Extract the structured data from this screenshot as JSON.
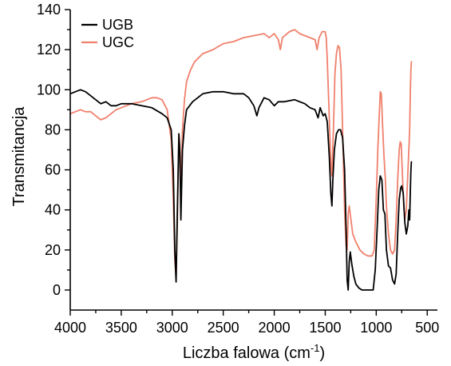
{
  "chart_data": {
    "type": "line",
    "xlabel_main": "Liczba falowa (cm",
    "xlabel_sup": "-1",
    "xlabel_close": ")",
    "ylabel": "Transmitancja",
    "xlim": [
      4000,
      400
    ],
    "ylim": [
      -10,
      140
    ],
    "x_ticks": [
      4000,
      3500,
      3000,
      2500,
      2000,
      1500,
      1000,
      500
    ],
    "x_tick_labels": [
      "4000",
      "3500",
      "3000",
      "2500",
      "2000",
      "1500",
      "1000",
      "500"
    ],
    "y_ticks": [
      0,
      20,
      40,
      60,
      80,
      100,
      120,
      140
    ],
    "y_tick_labels": [
      "0",
      "20",
      "40",
      "60",
      "80",
      "100",
      "120",
      "140"
    ],
    "legend_position": "top-left",
    "series": [
      {
        "name": "UGB",
        "color": "#000000",
        "points": [
          [
            4000,
            98
          ],
          [
            3950,
            99
          ],
          [
            3900,
            100
          ],
          [
            3850,
            99
          ],
          [
            3800,
            97
          ],
          [
            3750,
            95
          ],
          [
            3700,
            93
          ],
          [
            3650,
            94
          ],
          [
            3600,
            92
          ],
          [
            3550,
            92
          ],
          [
            3500,
            93
          ],
          [
            3400,
            93
          ],
          [
            3300,
            92
          ],
          [
            3200,
            91
          ],
          [
            3100,
            88
          ],
          [
            3050,
            86
          ],
          [
            3010,
            80
          ],
          [
            2990,
            60
          ],
          [
            2975,
            20
          ],
          [
            2962,
            4
          ],
          [
            2950,
            40
          ],
          [
            2935,
            78
          ],
          [
            2925,
            68
          ],
          [
            2915,
            35
          ],
          [
            2900,
            70
          ],
          [
            2880,
            82
          ],
          [
            2860,
            90
          ],
          [
            2800,
            94
          ],
          [
            2700,
            98
          ],
          [
            2600,
            99
          ],
          [
            2500,
            99
          ],
          [
            2400,
            98
          ],
          [
            2300,
            98
          ],
          [
            2250,
            96
          ],
          [
            2200,
            92
          ],
          [
            2170,
            87
          ],
          [
            2150,
            91
          ],
          [
            2100,
            96
          ],
          [
            2050,
            95
          ],
          [
            2000,
            92
          ],
          [
            1960,
            94
          ],
          [
            1900,
            94
          ],
          [
            1800,
            95
          ],
          [
            1700,
            93
          ],
          [
            1650,
            91
          ],
          [
            1600,
            90
          ],
          [
            1570,
            86
          ],
          [
            1550,
            91
          ],
          [
            1520,
            87
          ],
          [
            1500,
            88
          ],
          [
            1480,
            84
          ],
          [
            1460,
            66
          ],
          [
            1445,
            48
          ],
          [
            1435,
            42
          ],
          [
            1425,
            55
          ],
          [
            1410,
            70
          ],
          [
            1390,
            78
          ],
          [
            1370,
            80
          ],
          [
            1350,
            80
          ],
          [
            1330,
            76
          ],
          [
            1310,
            60
          ],
          [
            1295,
            30
          ],
          [
            1285,
            5
          ],
          [
            1275,
            0
          ],
          [
            1265,
            14
          ],
          [
            1255,
            19
          ],
          [
            1240,
            13
          ],
          [
            1220,
            7
          ],
          [
            1200,
            3
          ],
          [
            1170,
            1
          ],
          [
            1140,
            0
          ],
          [
            1100,
            0
          ],
          [
            1060,
            0
          ],
          [
            1030,
            0
          ],
          [
            1010,
            10
          ],
          [
            990,
            32
          ],
          [
            975,
            50
          ],
          [
            960,
            57
          ],
          [
            945,
            55
          ],
          [
            930,
            40
          ],
          [
            915,
            38
          ],
          [
            900,
            20
          ],
          [
            880,
            12
          ],
          [
            860,
            11
          ],
          [
            840,
            5
          ],
          [
            820,
            3
          ],
          [
            805,
            8
          ],
          [
            790,
            28
          ],
          [
            775,
            45
          ],
          [
            760,
            51
          ],
          [
            750,
            52
          ],
          [
            735,
            48
          ],
          [
            720,
            34
          ],
          [
            705,
            28
          ],
          [
            690,
            32
          ],
          [
            680,
            40
          ],
          [
            672,
            35
          ],
          [
            665,
            50
          ],
          [
            660,
            60
          ],
          [
            655,
            64
          ]
        ]
      },
      {
        "name": "UGC",
        "color": "#f0806c",
        "points": [
          [
            4000,
            88
          ],
          [
            3950,
            89
          ],
          [
            3900,
            90
          ],
          [
            3850,
            89
          ],
          [
            3800,
            89
          ],
          [
            3750,
            87
          ],
          [
            3700,
            85
          ],
          [
            3650,
            86
          ],
          [
            3600,
            88
          ],
          [
            3550,
            90
          ],
          [
            3500,
            91
          ],
          [
            3400,
            93
          ],
          [
            3300,
            94
          ],
          [
            3200,
            96
          ],
          [
            3150,
            96
          ],
          [
            3100,
            95
          ],
          [
            3050,
            90
          ],
          [
            3010,
            75
          ],
          [
            2990,
            45
          ],
          [
            2975,
            15
          ],
          [
            2962,
            6
          ],
          [
            2950,
            35
          ],
          [
            2935,
            78
          ],
          [
            2925,
            72
          ],
          [
            2915,
            48
          ],
          [
            2900,
            80
          ],
          [
            2880,
            95
          ],
          [
            2860,
            104
          ],
          [
            2820,
            110
          ],
          [
            2780,
            114
          ],
          [
            2700,
            118
          ],
          [
            2600,
            120
          ],
          [
            2500,
            123
          ],
          [
            2400,
            124
          ],
          [
            2300,
            126
          ],
          [
            2200,
            127
          ],
          [
            2100,
            128
          ],
          [
            2050,
            126
          ],
          [
            2000,
            128
          ],
          [
            1960,
            125
          ],
          [
            1940,
            120
          ],
          [
            1920,
            126
          ],
          [
            1850,
            129
          ],
          [
            1800,
            130
          ],
          [
            1750,
            128
          ],
          [
            1700,
            127
          ],
          [
            1650,
            126
          ],
          [
            1600,
            125
          ],
          [
            1580,
            120
          ],
          [
            1560,
            126
          ],
          [
            1530,
            129
          ],
          [
            1500,
            129
          ],
          [
            1490,
            126
          ],
          [
            1480,
            115
          ],
          [
            1470,
            100
          ],
          [
            1460,
            85
          ],
          [
            1445,
            62
          ],
          [
            1435,
            57
          ],
          [
            1420,
            80
          ],
          [
            1405,
            108
          ],
          [
            1390,
            118
          ],
          [
            1375,
            122
          ],
          [
            1360,
            121
          ],
          [
            1345,
            110
          ],
          [
            1330,
            80
          ],
          [
            1310,
            40
          ],
          [
            1295,
            22
          ],
          [
            1285,
            20
          ],
          [
            1275,
            38
          ],
          [
            1265,
            42
          ],
          [
            1250,
            36
          ],
          [
            1230,
            28
          ],
          [
            1200,
            24
          ],
          [
            1160,
            20
          ],
          [
            1120,
            18
          ],
          [
            1080,
            17
          ],
          [
            1040,
            17
          ],
          [
            1020,
            20
          ],
          [
            1000,
            45
          ],
          [
            985,
            70
          ],
          [
            970,
            88
          ],
          [
            960,
            99
          ],
          [
            950,
            98
          ],
          [
            940,
            85
          ],
          [
            925,
            68
          ],
          [
            910,
            55
          ],
          [
            900,
            42
          ],
          [
            880,
            28
          ],
          [
            860,
            20
          ],
          [
            840,
            18
          ],
          [
            820,
            20
          ],
          [
            805,
            35
          ],
          [
            790,
            55
          ],
          [
            775,
            70
          ],
          [
            765,
            74
          ],
          [
            755,
            73
          ],
          [
            745,
            60
          ],
          [
            730,
            42
          ],
          [
            720,
            35
          ],
          [
            705,
            40
          ],
          [
            690,
            58
          ],
          [
            680,
            70
          ],
          [
            672,
            80
          ],
          [
            665,
            100
          ],
          [
            660,
            110
          ],
          [
            655,
            114
          ]
        ]
      }
    ]
  }
}
